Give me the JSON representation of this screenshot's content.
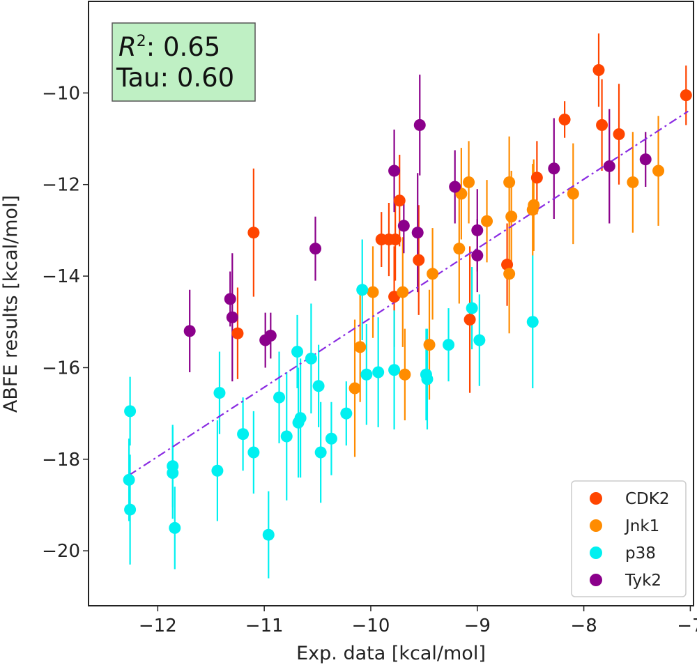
{
  "chart_data": {
    "type": "scatter",
    "xlabel": "Exp. data [kcal/mol]",
    "ylabel": "ABFE results [kcal/mol]",
    "xlim": [
      -12.65,
      -6.97
    ],
    "ylim": [
      -21.2,
      -8.0
    ],
    "xticks": [
      -12,
      -11,
      -10,
      -9,
      -8,
      -7
    ],
    "yticks": [
      -10,
      -12,
      -14,
      -16,
      -18,
      -20
    ],
    "xtick_labels": [
      "−12",
      "−11",
      "−10",
      "−9",
      "−8",
      "−7"
    ],
    "ytick_labels": [
      "−10",
      "−12",
      "−14",
      "−16",
      "−18",
      "−20"
    ],
    "stats": {
      "r2_symbol": "R",
      "r2_exp": "2",
      "r2_value": ": 0.65",
      "tau_label": "Tau: 0.60"
    },
    "fit_line": {
      "x": [
        -12.27,
        -7.02
      ],
      "y": [
        -18.35,
        -10.4
      ],
      "color": "#8a2be2",
      "style": "dash-dot"
    },
    "legend": {
      "position": "bottom-right"
    },
    "series": [
      {
        "name": "CDK2",
        "color": "#ff4500",
        "points": [
          {
            "x": -11.25,
            "y": -15.25,
            "err": 1.0
          },
          {
            "x": -11.1,
            "y": -13.05,
            "err": 1.4
          },
          {
            "x": -9.9,
            "y": -13.2,
            "err": 0.6
          },
          {
            "x": -9.83,
            "y": -13.2,
            "err": 0.8
          },
          {
            "x": -9.77,
            "y": -13.2,
            "err": 0.9
          },
          {
            "x": -9.73,
            "y": -12.35,
            "err": 1.0
          },
          {
            "x": -9.78,
            "y": -14.45,
            "err": 1.1
          },
          {
            "x": -9.55,
            "y": -13.65,
            "err": 1.2
          },
          {
            "x": -9.07,
            "y": -14.95,
            "err": 1.6
          },
          {
            "x": -8.72,
            "y": -13.75,
            "err": 0.9
          },
          {
            "x": -8.44,
            "y": -11.85,
            "err": 0.8
          },
          {
            "x": -8.18,
            "y": -10.58,
            "err": 0.4
          },
          {
            "x": -7.86,
            "y": -9.5,
            "err": 0.8
          },
          {
            "x": -7.83,
            "y": -10.7,
            "err": 1.0
          },
          {
            "x": -7.67,
            "y": -10.9,
            "err": 1.1
          },
          {
            "x": -7.04,
            "y": -10.05,
            "err": 0.65
          }
        ]
      },
      {
        "name": "Jnk1",
        "color": "#ff8c00",
        "points": [
          {
            "x": -10.15,
            "y": -16.45,
            "err": 1.5
          },
          {
            "x": -10.1,
            "y": -15.55,
            "err": 1.2
          },
          {
            "x": -9.98,
            "y": -14.35,
            "err": 1.0
          },
          {
            "x": -9.7,
            "y": -14.35,
            "err": 1.2
          },
          {
            "x": -9.68,
            "y": -16.15,
            "err": 1.0
          },
          {
            "x": -9.45,
            "y": -15.5,
            "err": 1.2
          },
          {
            "x": -9.42,
            "y": -13.95,
            "err": 1.0
          },
          {
            "x": -9.17,
            "y": -13.4,
            "err": 1.2
          },
          {
            "x": -9.15,
            "y": -12.2,
            "err": 1.0
          },
          {
            "x": -9.08,
            "y": -11.95,
            "err": 0.9
          },
          {
            "x": -8.91,
            "y": -12.8,
            "err": 0.9
          },
          {
            "x": -8.7,
            "y": -11.95,
            "err": 1.0
          },
          {
            "x": -8.7,
            "y": -13.95,
            "err": 1.3
          },
          {
            "x": -8.68,
            "y": -12.7,
            "err": 1.0
          },
          {
            "x": -8.47,
            "y": -12.45,
            "err": 1.0
          },
          {
            "x": -8.48,
            "y": -12.55,
            "err": 1.0
          },
          {
            "x": -8.1,
            "y": -12.2,
            "err": 1.1
          },
          {
            "x": -7.54,
            "y": -11.95,
            "err": 1.1
          },
          {
            "x": -7.3,
            "y": -11.7,
            "err": 1.2
          }
        ]
      },
      {
        "name": "p38",
        "color": "#00f0f0",
        "points": [
          {
            "x": -12.26,
            "y": -16.95,
            "err": 0.75
          },
          {
            "x": -12.27,
            "y": -18.45,
            "err": 0.9
          },
          {
            "x": -12.26,
            "y": -19.1,
            "err": 1.2
          },
          {
            "x": -11.86,
            "y": -18.15,
            "err": 0.9
          },
          {
            "x": -11.86,
            "y": -18.3,
            "err": 1.0
          },
          {
            "x": -11.84,
            "y": -19.5,
            "err": 0.9
          },
          {
            "x": -11.44,
            "y": -18.25,
            "err": 1.1
          },
          {
            "x": -11.42,
            "y": -16.55,
            "err": 0.9
          },
          {
            "x": -11.2,
            "y": -17.45,
            "err": 0.8
          },
          {
            "x": -11.1,
            "y": -17.85,
            "err": 0.9
          },
          {
            "x": -10.96,
            "y": -19.65,
            "err": 0.95
          },
          {
            "x": -10.86,
            "y": -16.65,
            "err": 1.0
          },
          {
            "x": -10.79,
            "y": -17.5,
            "err": 1.4
          },
          {
            "x": -10.69,
            "y": -15.65,
            "err": 0.8
          },
          {
            "x": -10.66,
            "y": -17.1,
            "err": 1.3
          },
          {
            "x": -10.68,
            "y": -17.2,
            "err": 1.2
          },
          {
            "x": -10.56,
            "y": -15.8,
            "err": 1.2
          },
          {
            "x": -10.49,
            "y": -16.4,
            "err": 0.9
          },
          {
            "x": -10.47,
            "y": -17.85,
            "err": 1.1
          },
          {
            "x": -10.37,
            "y": -17.55,
            "err": 0.8
          },
          {
            "x": -10.23,
            "y": -17.0,
            "err": 0.7
          },
          {
            "x": -10.08,
            "y": -14.3,
            "err": 1.1
          },
          {
            "x": -10.04,
            "y": -16.15,
            "err": 1.1
          },
          {
            "x": -9.93,
            "y": -16.1,
            "err": 1.2
          },
          {
            "x": -9.78,
            "y": -16.05,
            "err": 1.3
          },
          {
            "x": -9.48,
            "y": -16.15,
            "err": 1.0
          },
          {
            "x": -9.47,
            "y": -16.25,
            "err": 1.1
          },
          {
            "x": -9.27,
            "y": -15.5,
            "err": 0.8
          },
          {
            "x": -9.05,
            "y": -14.7,
            "err": 0.9
          },
          {
            "x": -8.98,
            "y": -15.4,
            "err": 1.0
          },
          {
            "x": -8.48,
            "y": -15.0,
            "err": 1.45
          }
        ]
      },
      {
        "name": "Tyk2",
        "color": "#8b008b",
        "points": [
          {
            "x": -11.7,
            "y": -15.2,
            "err": 0.9
          },
          {
            "x": -11.32,
            "y": -14.5,
            "err": 0.6
          },
          {
            "x": -11.3,
            "y": -14.9,
            "err": 1.4
          },
          {
            "x": -10.99,
            "y": -15.4,
            "err": 0.6
          },
          {
            "x": -10.94,
            "y": -15.3,
            "err": 0.5
          },
          {
            "x": -10.52,
            "y": -13.4,
            "err": 0.7
          },
          {
            "x": -9.78,
            "y": -11.7,
            "err": 0.9
          },
          {
            "x": -9.69,
            "y": -12.9,
            "err": 0.6
          },
          {
            "x": -9.56,
            "y": -13.05,
            "err": 1.3
          },
          {
            "x": -9.54,
            "y": -10.7,
            "err": 1.1
          },
          {
            "x": -9.21,
            "y": -12.05,
            "err": 0.8
          },
          {
            "x": -9.0,
            "y": -13.0,
            "err": 0.9
          },
          {
            "x": -9.0,
            "y": -13.55,
            "err": 0.8
          },
          {
            "x": -8.28,
            "y": -11.65,
            "err": 1.1
          },
          {
            "x": -7.76,
            "y": -11.6,
            "err": 1.25
          },
          {
            "x": -7.42,
            "y": -11.45,
            "err": 0.6
          }
        ]
      }
    ]
  }
}
